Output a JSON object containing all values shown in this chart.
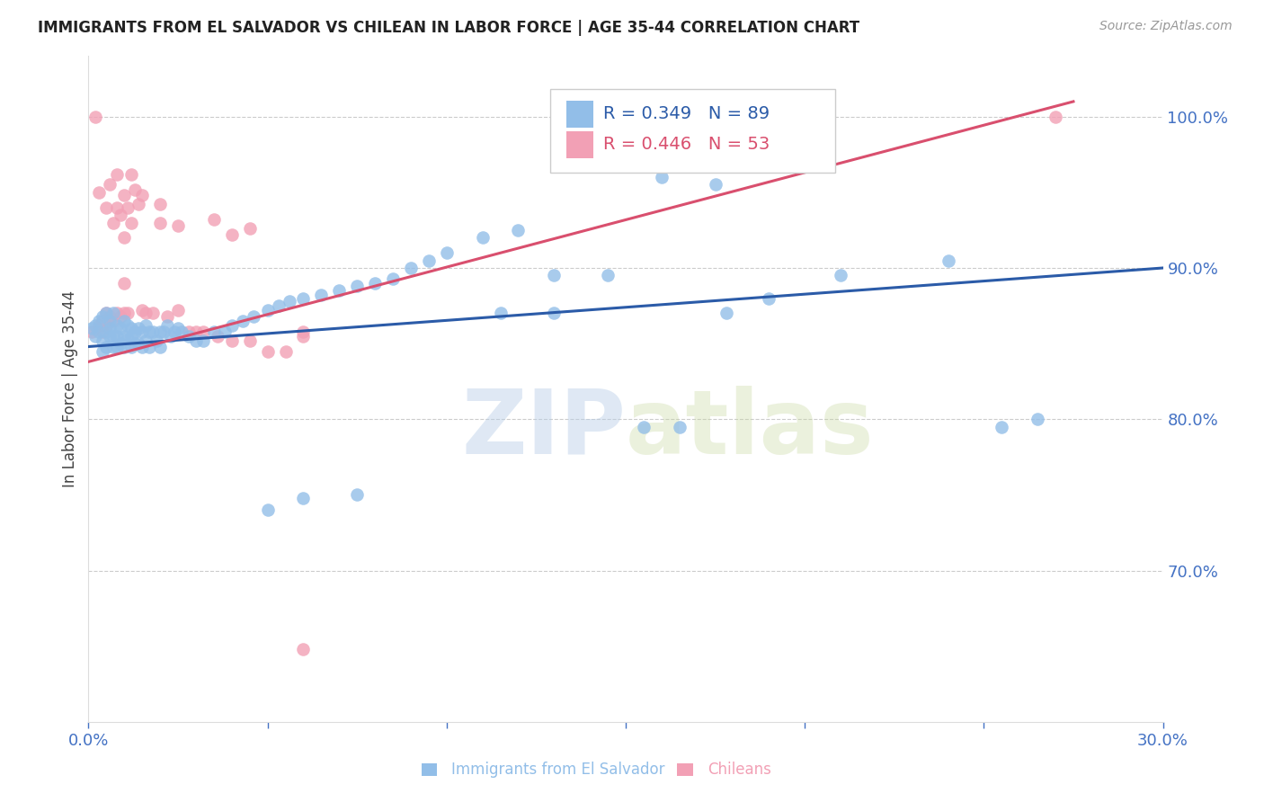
{
  "title": "IMMIGRANTS FROM EL SALVADOR VS CHILEAN IN LABOR FORCE | AGE 35-44 CORRELATION CHART",
  "source": "Source: ZipAtlas.com",
  "ylabel": "In Labor Force | Age 35-44",
  "x_min": 0.0,
  "x_max": 0.3,
  "y_min": 0.6,
  "y_max": 1.04,
  "x_ticks": [
    0.0,
    0.05,
    0.1,
    0.15,
    0.2,
    0.25,
    0.3
  ],
  "x_tick_labels": [
    "0.0%",
    "",
    "",
    "",
    "",
    "",
    "30.0%"
  ],
  "y_ticks_right": [
    0.7,
    0.8,
    0.9,
    1.0
  ],
  "y_tick_labels_right": [
    "70.0%",
    "80.0%",
    "90.0%",
    "100.0%"
  ],
  "legend_r1": "R = 0.349",
  "legend_n1": "N = 89",
  "legend_r2": "R = 0.446",
  "legend_n2": "N = 53",
  "legend_label1": "Immigrants from El Salvador",
  "legend_label2": "Chileans",
  "blue_color": "#92BEE8",
  "pink_color": "#F2A0B5",
  "blue_line_color": "#2B5BA8",
  "pink_line_color": "#D94F6E",
  "axis_label_color": "#4472C4",
  "watermark_zip": "ZIP",
  "watermark_atlas": "atlas",
  "blue_dots_x": [
    0.001,
    0.002,
    0.002,
    0.003,
    0.003,
    0.004,
    0.004,
    0.004,
    0.005,
    0.005,
    0.005,
    0.006,
    0.006,
    0.006,
    0.007,
    0.007,
    0.007,
    0.008,
    0.008,
    0.008,
    0.009,
    0.009,
    0.01,
    0.01,
    0.01,
    0.011,
    0.011,
    0.012,
    0.012,
    0.012,
    0.013,
    0.013,
    0.014,
    0.014,
    0.015,
    0.015,
    0.016,
    0.016,
    0.017,
    0.017,
    0.018,
    0.019,
    0.02,
    0.02,
    0.021,
    0.022,
    0.023,
    0.024,
    0.025,
    0.026,
    0.028,
    0.03,
    0.032,
    0.035,
    0.038,
    0.04,
    0.043,
    0.046,
    0.05,
    0.053,
    0.056,
    0.06,
    0.065,
    0.07,
    0.075,
    0.08,
    0.085,
    0.09,
    0.095,
    0.1,
    0.11,
    0.12,
    0.13,
    0.145,
    0.16,
    0.175,
    0.19,
    0.21,
    0.24,
    0.255,
    0.265,
    0.155,
    0.165,
    0.178,
    0.05,
    0.06,
    0.075,
    0.115,
    0.13
  ],
  "blue_dots_y": [
    0.86,
    0.855,
    0.862,
    0.858,
    0.865,
    0.868,
    0.852,
    0.845,
    0.87,
    0.858,
    0.848,
    0.865,
    0.855,
    0.86,
    0.87,
    0.855,
    0.848,
    0.862,
    0.855,
    0.848,
    0.86,
    0.85,
    0.865,
    0.855,
    0.848,
    0.862,
    0.853,
    0.86,
    0.855,
    0.848,
    0.858,
    0.85,
    0.86,
    0.85,
    0.858,
    0.848,
    0.862,
    0.852,
    0.858,
    0.848,
    0.858,
    0.852,
    0.858,
    0.848,
    0.858,
    0.862,
    0.855,
    0.858,
    0.86,
    0.858,
    0.855,
    0.852,
    0.852,
    0.858,
    0.858,
    0.862,
    0.865,
    0.868,
    0.872,
    0.875,
    0.878,
    0.88,
    0.882,
    0.885,
    0.888,
    0.89,
    0.893,
    0.9,
    0.905,
    0.91,
    0.92,
    0.925,
    0.87,
    0.895,
    0.96,
    0.955,
    0.88,
    0.895,
    0.905,
    0.795,
    0.8,
    0.795,
    0.795,
    0.87,
    0.74,
    0.748,
    0.75,
    0.87,
    0.895
  ],
  "pink_dots_x": [
    0.001,
    0.002,
    0.003,
    0.003,
    0.004,
    0.004,
    0.005,
    0.005,
    0.005,
    0.006,
    0.006,
    0.007,
    0.007,
    0.008,
    0.008,
    0.008,
    0.009,
    0.009,
    0.01,
    0.01,
    0.01,
    0.011,
    0.011,
    0.012,
    0.013,
    0.014,
    0.015,
    0.016,
    0.018,
    0.02,
    0.022,
    0.025,
    0.028,
    0.032,
    0.036,
    0.04,
    0.045,
    0.05,
    0.055,
    0.06,
    0.02,
    0.025,
    0.03,
    0.035,
    0.04,
    0.045,
    0.012,
    0.015,
    0.2,
    0.27,
    0.06,
    0.06,
    0.01
  ],
  "pink_dots_y": [
    0.858,
    1.0,
    0.862,
    0.95,
    0.865,
    0.858,
    0.87,
    0.862,
    0.94,
    0.868,
    0.955,
    0.865,
    0.93,
    0.87,
    0.94,
    0.962,
    0.868,
    0.935,
    0.92,
    0.87,
    0.948,
    0.94,
    0.87,
    0.93,
    0.952,
    0.942,
    0.948,
    0.87,
    0.87,
    0.942,
    0.868,
    0.872,
    0.858,
    0.858,
    0.855,
    0.852,
    0.852,
    0.845,
    0.845,
    0.858,
    0.93,
    0.928,
    0.858,
    0.932,
    0.922,
    0.926,
    0.962,
    0.872,
    1.0,
    1.0,
    0.648,
    0.855,
    0.89
  ],
  "blue_trend_x": [
    0.0,
    0.3
  ],
  "blue_trend_y": [
    0.848,
    0.9
  ],
  "pink_trend_x": [
    0.0,
    0.275
  ],
  "pink_trend_y": [
    0.838,
    1.01
  ]
}
